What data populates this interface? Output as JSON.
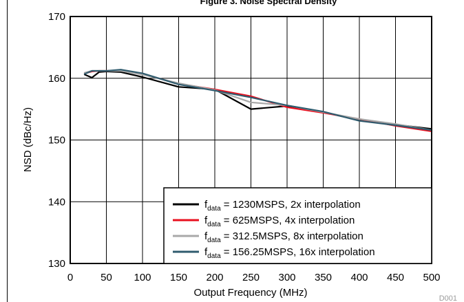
{
  "chart_data": {
    "type": "line",
    "title": "Figure 3. Noise Spectral Density",
    "xlabel": "Output Frequency (MHz)",
    "ylabel": "NSD (dBc/Hz)",
    "xlim": [
      0,
      500
    ],
    "ylim": [
      130,
      170
    ],
    "xticks": [
      "0",
      "50",
      "100",
      "150",
      "200",
      "250",
      "300",
      "350",
      "400",
      "450",
      "500"
    ],
    "yticks": [
      "130",
      "140",
      "150",
      "160",
      "170"
    ],
    "grid": true,
    "legend_position": "bottom-right",
    "figure_id": "D001",
    "series": [
      {
        "name": "fdata = 1230MSPS, 2x interpolation",
        "label_main": "f",
        "label_sub": "data",
        "label_rest": " = 1230MSPS, 2x interpolation",
        "color": "#000000",
        "x": [
          20,
          30,
          40,
          50,
          70,
          100,
          150,
          200,
          250,
          300,
          350,
          400,
          450,
          500
        ],
        "y": [
          160.6,
          160.1,
          161.0,
          161.1,
          161.0,
          160.2,
          158.6,
          158.2,
          155.0,
          155.5,
          154.5,
          153.2,
          152.5,
          151.8
        ]
      },
      {
        "name": "fdata = 625MSPS, 4x interpolation",
        "label_main": "f",
        "label_sub": "data",
        "label_rest": " = 625MSPS, 4x interpolation",
        "color": "#e8101f",
        "x": [
          20,
          30,
          40,
          50,
          70,
          100,
          150,
          200,
          250,
          300,
          350,
          400,
          450,
          500
        ],
        "y": [
          160.8,
          161.1,
          161.2,
          161.2,
          161.3,
          160.7,
          159.1,
          158.2,
          157.1,
          155.3,
          154.4,
          153.4,
          152.3,
          151.4
        ]
      },
      {
        "name": "fdata = 312.5MSPS, 8x interpolation",
        "label_main": "f",
        "label_sub": "data",
        "label_rest": " = 312.5MSPS, 8x interpolation",
        "color": "#a8a8a8",
        "x": [
          20,
          30,
          40,
          50,
          70,
          100,
          150,
          200,
          250,
          300,
          350,
          400,
          450,
          500
        ],
        "y": [
          160.9,
          161.2,
          161.2,
          161.2,
          161.2,
          160.6,
          159.2,
          158.1,
          156.1,
          155.6,
          154.5,
          153.4,
          152.6,
          151.6
        ]
      },
      {
        "name": "fdata = 156.25MSPS, 16x interpolation",
        "label_main": "f",
        "label_sub": "data",
        "label_rest": " = 156.25MSPS, 16x interpolation",
        "color": "#2f5b6e",
        "x": [
          20,
          30,
          40,
          50,
          70,
          100,
          150,
          200,
          250,
          300,
          350,
          400,
          450,
          500
        ],
        "y": [
          160.7,
          161.2,
          161.2,
          161.2,
          161.4,
          160.8,
          159.0,
          158.0,
          156.9,
          155.6,
          154.6,
          153.1,
          152.4,
          151.6
        ]
      }
    ]
  }
}
